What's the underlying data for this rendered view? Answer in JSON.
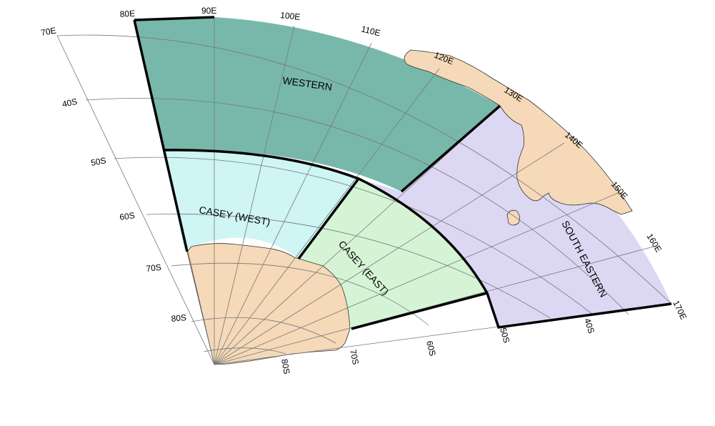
{
  "map": {
    "colors": {
      "western": "#78b8aa",
      "casey_west": "#cff5f5",
      "casey_east": "#d5f4d5",
      "south_eastern": "#dcd8f3",
      "land": "#f5d9b8",
      "boundary": "#000000"
    },
    "longitude_labels": [
      "70E",
      "80E",
      "90E",
      "100E",
      "110E",
      "120E",
      "130E",
      "140E",
      "150E",
      "160E",
      "170E"
    ],
    "latitude_labels_left": [
      "40S",
      "50S",
      "60S",
      "70S",
      "80S"
    ],
    "latitude_labels_bottom": [
      "80S",
      "70S",
      "60S",
      "50S",
      "40S"
    ],
    "regions": {
      "western": "WESTERN",
      "casey_west": "CASEY (WEST)",
      "casey_east": "CASEY (EAST)",
      "south_eastern": "SOUTH EASTERN"
    }
  }
}
